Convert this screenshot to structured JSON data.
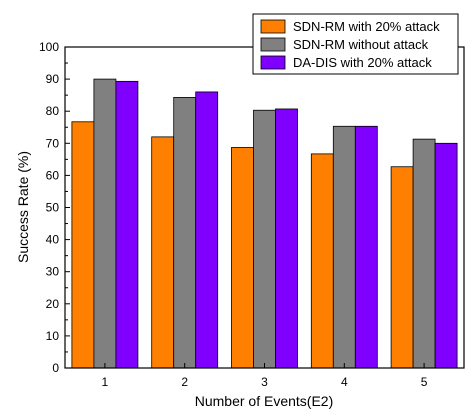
{
  "chart_data": {
    "type": "bar",
    "categories": [
      "1",
      "2",
      "3",
      "4",
      "5"
    ],
    "series": [
      {
        "name": "SDN-RM with 20% attack",
        "values": [
          76.7,
          72.0,
          68.7,
          66.7,
          62.7
        ],
        "color": "#ff8000"
      },
      {
        "name": "SDN-RM without attack",
        "values": [
          90.0,
          84.3,
          80.3,
          75.3,
          71.3
        ],
        "color": "#808080"
      },
      {
        "name": "DA-DIS with 20% attack",
        "values": [
          89.3,
          86.0,
          80.7,
          75.3,
          70.0
        ],
        "color": "#8000ff"
      }
    ],
    "xlabel": "Number of Events(E2)",
    "ylabel": "Success Rate (%)",
    "ylim": [
      0,
      100
    ],
    "yticks": [
      "0",
      "10",
      "20",
      "30",
      "40",
      "50",
      "60",
      "70",
      "80",
      "90",
      "100"
    ],
    "grid": false,
    "legend_position": "top-right"
  }
}
